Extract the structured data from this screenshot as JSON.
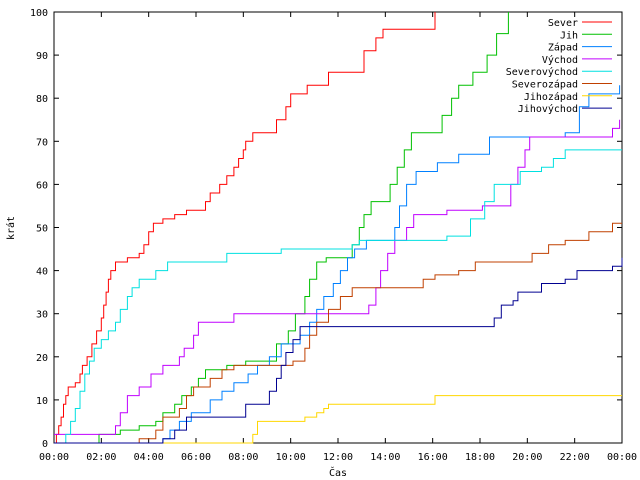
{
  "chart_data": {
    "type": "line",
    "title": "",
    "xlabel": "Čas",
    "ylabel": "krát",
    "xlim": [
      0,
      24
    ],
    "ylim": [
      0,
      100
    ],
    "x_ticks": [
      {
        "v": 0,
        "label": "00:00"
      },
      {
        "v": 2,
        "label": "02:00"
      },
      {
        "v": 4,
        "label": "04:00"
      },
      {
        "v": 6,
        "label": "06:00"
      },
      {
        "v": 8,
        "label": "08:00"
      },
      {
        "v": 10,
        "label": "10:00"
      },
      {
        "v": 12,
        "label": "12:00"
      },
      {
        "v": 14,
        "label": "14:00"
      },
      {
        "v": 16,
        "label": "16:00"
      },
      {
        "v": 18,
        "label": "18:00"
      },
      {
        "v": 20,
        "label": "20:00"
      },
      {
        "v": 22,
        "label": "22:00"
      },
      {
        "v": 24,
        "label": "00:00"
      }
    ],
    "y_ticks": [
      0,
      10,
      20,
      30,
      40,
      50,
      60,
      70,
      80,
      90,
      100
    ],
    "grid": false,
    "legend": "top-right",
    "series": [
      {
        "name": "Sever",
        "color": "#ff0000",
        "points": [
          [
            0,
            0
          ],
          [
            0.1,
            2
          ],
          [
            0.2,
            4
          ],
          [
            0.3,
            6
          ],
          [
            0.4,
            9
          ],
          [
            0.5,
            11
          ],
          [
            0.6,
            13
          ],
          [
            0.9,
            14
          ],
          [
            1.1,
            16
          ],
          [
            1.2,
            18
          ],
          [
            1.4,
            20
          ],
          [
            1.6,
            23
          ],
          [
            1.8,
            26
          ],
          [
            2.0,
            29
          ],
          [
            2.1,
            32
          ],
          [
            2.2,
            35
          ],
          [
            2.3,
            38
          ],
          [
            2.4,
            40
          ],
          [
            2.6,
            42
          ],
          [
            3.1,
            43
          ],
          [
            3.6,
            44
          ],
          [
            3.8,
            46
          ],
          [
            4.0,
            49
          ],
          [
            4.2,
            51
          ],
          [
            4.6,
            52
          ],
          [
            5.1,
            53
          ],
          [
            5.6,
            54
          ],
          [
            6.4,
            56
          ],
          [
            6.6,
            58
          ],
          [
            7.0,
            60
          ],
          [
            7.3,
            62
          ],
          [
            7.6,
            64
          ],
          [
            7.8,
            66
          ],
          [
            8.0,
            68
          ],
          [
            8.1,
            70
          ],
          [
            8.4,
            72
          ],
          [
            9.4,
            75
          ],
          [
            9.8,
            78
          ],
          [
            10.0,
            81
          ],
          [
            10.7,
            83
          ],
          [
            11.6,
            86
          ],
          [
            13.1,
            91
          ],
          [
            13.6,
            94
          ],
          [
            13.9,
            96
          ],
          [
            16.1,
            100
          ]
        ]
      },
      {
        "name": "Jih",
        "color": "#00c000",
        "points": [
          [
            0,
            0
          ],
          [
            1.9,
            2
          ],
          [
            2.8,
            3
          ],
          [
            3.6,
            4
          ],
          [
            4.3,
            5
          ],
          [
            4.6,
            7
          ],
          [
            5.1,
            9
          ],
          [
            5.4,
            11
          ],
          [
            5.8,
            13
          ],
          [
            6.1,
            15
          ],
          [
            6.4,
            17
          ],
          [
            7.3,
            18
          ],
          [
            8.1,
            19
          ],
          [
            9.4,
            23
          ],
          [
            9.9,
            26
          ],
          [
            10.2,
            30
          ],
          [
            10.6,
            34
          ],
          [
            10.8,
            38
          ],
          [
            11.1,
            42
          ],
          [
            11.5,
            43
          ],
          [
            12.6,
            46
          ],
          [
            12.9,
            50
          ],
          [
            13.1,
            53
          ],
          [
            13.4,
            56
          ],
          [
            14.2,
            60
          ],
          [
            14.5,
            64
          ],
          [
            14.8,
            68
          ],
          [
            15.1,
            72
          ],
          [
            16.4,
            76
          ],
          [
            16.8,
            80
          ],
          [
            17.1,
            83
          ],
          [
            17.7,
            86
          ],
          [
            18.3,
            90
          ],
          [
            18.7,
            95
          ],
          [
            19.2,
            100
          ]
        ]
      },
      {
        "name": "Západ",
        "color": "#0080ff",
        "points": [
          [
            0,
            0
          ],
          [
            4.6,
            1
          ],
          [
            4.9,
            3
          ],
          [
            5.3,
            5
          ],
          [
            5.8,
            7
          ],
          [
            6.6,
            10
          ],
          [
            7.1,
            12
          ],
          [
            7.6,
            14
          ],
          [
            8.2,
            16
          ],
          [
            8.6,
            18
          ],
          [
            9.1,
            20
          ],
          [
            9.6,
            23
          ],
          [
            10.4,
            25
          ],
          [
            10.8,
            28
          ],
          [
            11.1,
            31
          ],
          [
            11.4,
            34
          ],
          [
            11.8,
            37
          ],
          [
            12.1,
            40
          ],
          [
            12.4,
            43
          ],
          [
            12.7,
            45
          ],
          [
            13.2,
            47
          ],
          [
            14.4,
            50
          ],
          [
            14.6,
            55
          ],
          [
            14.9,
            60
          ],
          [
            15.3,
            63
          ],
          [
            16.2,
            65
          ],
          [
            17.1,
            67
          ],
          [
            18.4,
            71
          ],
          [
            21.6,
            72
          ],
          [
            22.2,
            78
          ],
          [
            22.6,
            81
          ],
          [
            23.9,
            83
          ]
        ]
      },
      {
        "name": "Východ",
        "color": "#c000ff",
        "points": [
          [
            0,
            2
          ],
          [
            2.6,
            4
          ],
          [
            2.8,
            7
          ],
          [
            3.1,
            11
          ],
          [
            3.6,
            13
          ],
          [
            4.1,
            16
          ],
          [
            4.6,
            18
          ],
          [
            5.3,
            20
          ],
          [
            5.5,
            22
          ],
          [
            5.9,
            25
          ],
          [
            6.1,
            28
          ],
          [
            7.6,
            30
          ],
          [
            12.1,
            30
          ],
          [
            13.3,
            32
          ],
          [
            13.6,
            36
          ],
          [
            13.8,
            40
          ],
          [
            14.1,
            44
          ],
          [
            14.4,
            47
          ],
          [
            14.9,
            50
          ],
          [
            15.2,
            53
          ],
          [
            16.6,
            54
          ],
          [
            18.1,
            55
          ],
          [
            19.3,
            60
          ],
          [
            19.6,
            64
          ],
          [
            19.9,
            68
          ],
          [
            20.1,
            71
          ],
          [
            23.6,
            73
          ],
          [
            23.9,
            75
          ]
        ]
      },
      {
        "name": "Severovýchod",
        "color": "#00e0e0",
        "points": [
          [
            0,
            0
          ],
          [
            0.5,
            2
          ],
          [
            0.7,
            5
          ],
          [
            0.9,
            8
          ],
          [
            1.1,
            12
          ],
          [
            1.3,
            16
          ],
          [
            1.5,
            19
          ],
          [
            1.7,
            22
          ],
          [
            2.0,
            24
          ],
          [
            2.3,
            26
          ],
          [
            2.6,
            28
          ],
          [
            2.8,
            31
          ],
          [
            3.1,
            34
          ],
          [
            3.3,
            36
          ],
          [
            3.6,
            38
          ],
          [
            4.3,
            40
          ],
          [
            4.8,
            42
          ],
          [
            7.3,
            44
          ],
          [
            9.6,
            45
          ],
          [
            12.6,
            46
          ],
          [
            12.9,
            47
          ],
          [
            16.6,
            48
          ],
          [
            17.6,
            52
          ],
          [
            18.2,
            56
          ],
          [
            18.6,
            60
          ],
          [
            19.7,
            63
          ],
          [
            20.6,
            64
          ],
          [
            21.1,
            66
          ],
          [
            21.6,
            68
          ],
          [
            24,
            68
          ]
        ]
      },
      {
        "name": "Severozápad",
        "color": "#c04000",
        "points": [
          [
            0,
            0
          ],
          [
            3.6,
            1
          ],
          [
            4.3,
            3
          ],
          [
            4.6,
            6
          ],
          [
            5.3,
            8
          ],
          [
            5.6,
            11
          ],
          [
            5.9,
            13
          ],
          [
            6.6,
            15
          ],
          [
            7.1,
            17
          ],
          [
            7.6,
            18
          ],
          [
            10.1,
            19
          ],
          [
            10.6,
            22
          ],
          [
            10.8,
            25
          ],
          [
            11.1,
            28
          ],
          [
            11.6,
            31
          ],
          [
            12.1,
            34
          ],
          [
            12.6,
            36
          ],
          [
            15.6,
            38
          ],
          [
            16.1,
            39
          ],
          [
            17.1,
            40
          ],
          [
            17.8,
            42
          ],
          [
            19.1,
            42
          ],
          [
            20.2,
            44
          ],
          [
            20.9,
            46
          ],
          [
            21.6,
            47
          ],
          [
            22.6,
            49
          ],
          [
            23.6,
            51
          ],
          [
            24,
            51
          ]
        ]
      },
      {
        "name": "Jihozápad",
        "color": "#ffd700",
        "points": [
          [
            0,
            0
          ],
          [
            8.4,
            2
          ],
          [
            8.6,
            5
          ],
          [
            10.6,
            6
          ],
          [
            11.1,
            7
          ],
          [
            11.4,
            8
          ],
          [
            11.6,
            9
          ],
          [
            16.1,
            11
          ],
          [
            24,
            11
          ]
        ]
      },
      {
        "name": "Jihovýchod",
        "color": "#000090",
        "points": [
          [
            0,
            0
          ],
          [
            4.6,
            1
          ],
          [
            5.1,
            3
          ],
          [
            5.6,
            6
          ],
          [
            8.1,
            9
          ],
          [
            9.1,
            12
          ],
          [
            9.4,
            15
          ],
          [
            9.6,
            18
          ],
          [
            9.8,
            21
          ],
          [
            10.1,
            24
          ],
          [
            10.4,
            27
          ],
          [
            18.6,
            29
          ],
          [
            18.9,
            32
          ],
          [
            19.4,
            33
          ],
          [
            19.6,
            35
          ],
          [
            20.6,
            37
          ],
          [
            21.6,
            38
          ],
          [
            22.1,
            40
          ],
          [
            23.6,
            41
          ],
          [
            24,
            43
          ]
        ]
      }
    ]
  }
}
